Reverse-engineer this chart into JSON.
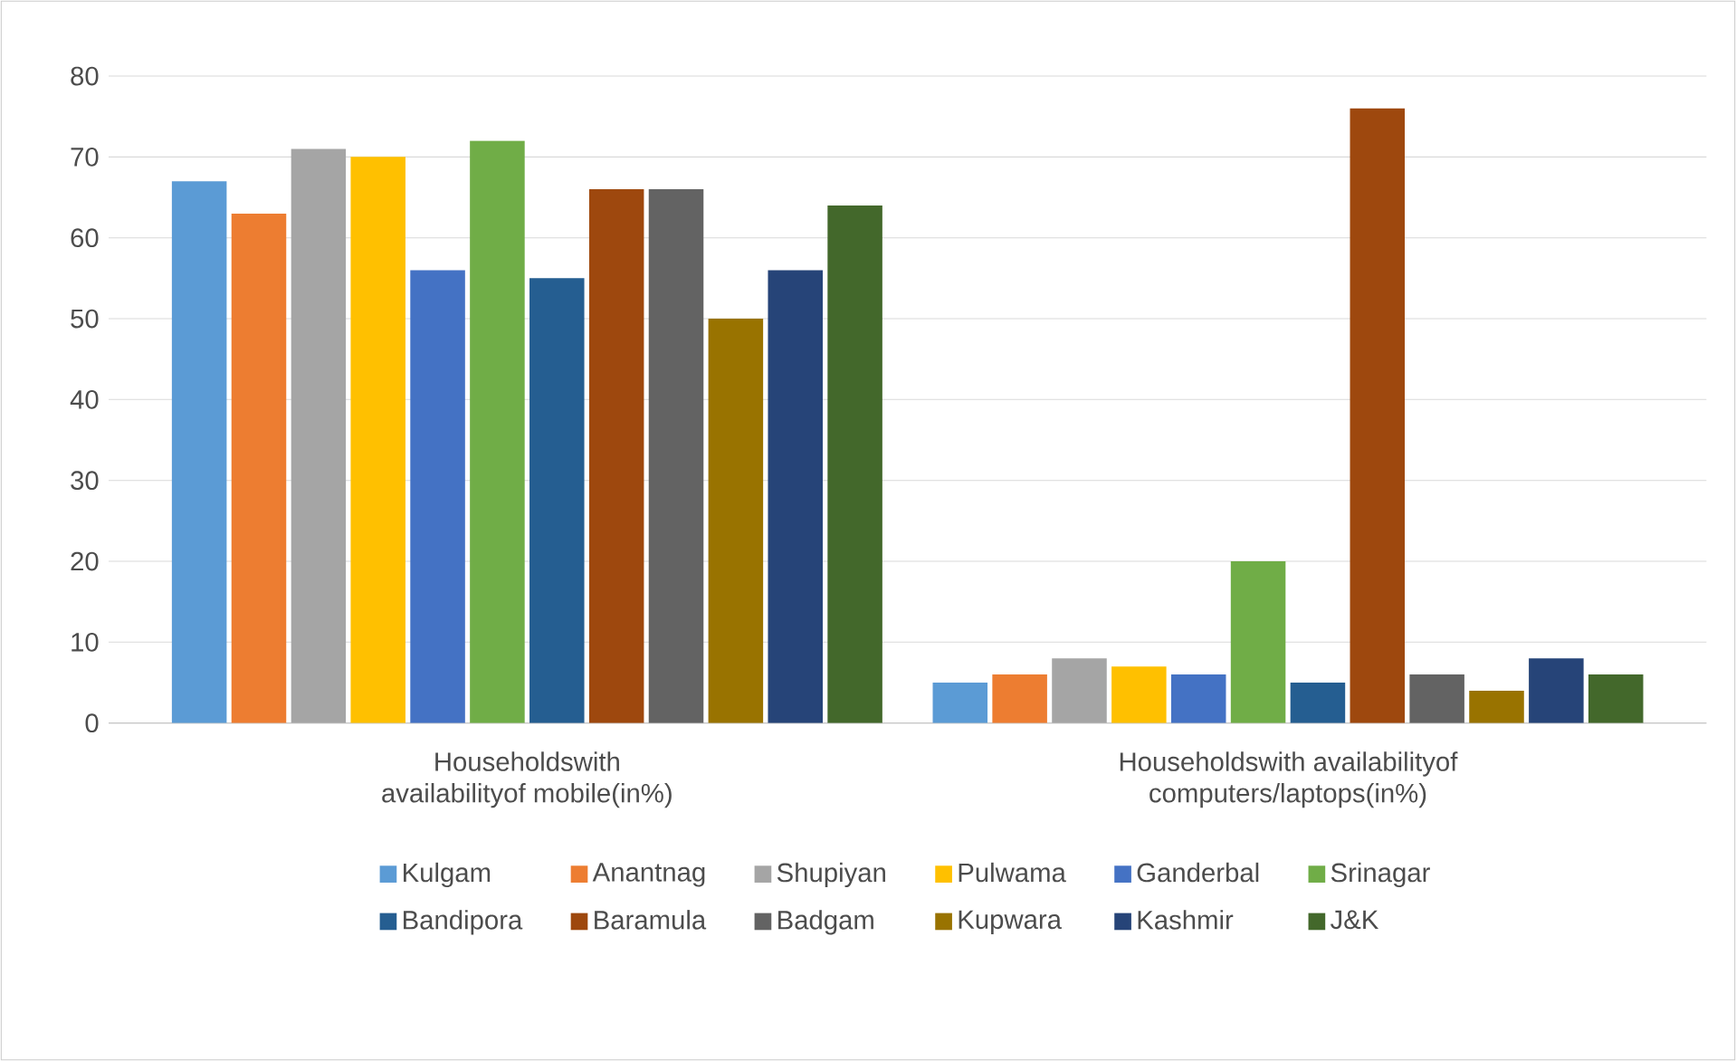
{
  "chart_data": {
    "type": "bar",
    "categories": [
      "Householdswith availabilityof mobile(in%)",
      "Householdswith availabilityof  computers/laptops(in%)"
    ],
    "series": [
      {
        "name": "Kulgam",
        "color": "#5b9bd5",
        "values": [
          67,
          5
        ]
      },
      {
        "name": "Anantnag",
        "color": "#ed7d31",
        "values": [
          63,
          6
        ]
      },
      {
        "name": "Shupiyan",
        "color": "#a5a5a5",
        "values": [
          71,
          8
        ]
      },
      {
        "name": "Pulwama",
        "color": "#ffc000",
        "values": [
          70,
          7
        ]
      },
      {
        "name": "Ganderbal",
        "color": "#4472c4",
        "values": [
          56,
          6
        ]
      },
      {
        "name": "Srinagar",
        "color": "#70ad47",
        "values": [
          72,
          20
        ]
      },
      {
        "name": "Bandipora",
        "color": "#255e91",
        "values": [
          55,
          5
        ]
      },
      {
        "name": "Baramula",
        "color": "#9e480e",
        "values": [
          66,
          76
        ]
      },
      {
        "name": "Badgam",
        "color": "#636363",
        "values": [
          66,
          6
        ]
      },
      {
        "name": "Kupwara",
        "color": "#997300",
        "values": [
          50,
          4
        ]
      },
      {
        "name": "Kashmir",
        "color": "#264478",
        "values": [
          56,
          8
        ]
      },
      {
        "name": "J&K",
        "color": "#43682b",
        "values": [
          64,
          6
        ]
      }
    ],
    "ylim": [
      0,
      80
    ],
    "yticks": [
      0,
      10,
      20,
      30,
      40,
      50,
      60,
      70,
      80
    ],
    "grid": "y",
    "legend": "bottom"
  }
}
